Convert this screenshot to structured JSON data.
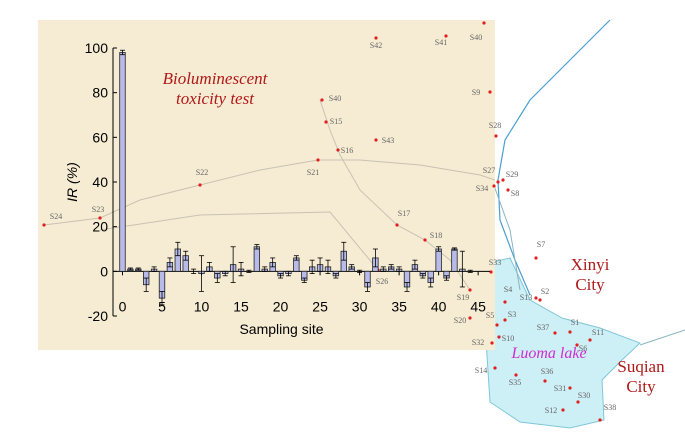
{
  "chart_data": {
    "type": "bar",
    "x_label": "Sampling site",
    "y_label": "IR (%)",
    "annotation": [
      "Bioluminescent",
      "toxicity test"
    ],
    "x": [
      0,
      1,
      2,
      3,
      4,
      5,
      6,
      7,
      8,
      9,
      10,
      11,
      12,
      13,
      14,
      15,
      16,
      17,
      18,
      19,
      20,
      21,
      22,
      23,
      24,
      25,
      26,
      27,
      28,
      29,
      30,
      31,
      32,
      33,
      34,
      35,
      36,
      37,
      38,
      39,
      40,
      41,
      42,
      43,
      44
    ],
    "values": [
      98,
      1,
      1,
      -6,
      1,
      -12,
      4,
      10,
      7,
      0,
      -1,
      2,
      -3,
      -1,
      3,
      1,
      0,
      11,
      1,
      4,
      -2,
      -1,
      6,
      -4,
      2,
      3,
      2,
      -2,
      9,
      2,
      0,
      -7,
      6,
      1,
      2,
      1,
      -7,
      3,
      -2,
      -5,
      10,
      -3,
      10,
      1,
      0
    ],
    "errors": [
      1,
      0.5,
      0.5,
      3,
      1,
      3,
      2,
      3,
      2,
      1,
      8,
      2,
      2,
      1,
      8,
      3,
      0.5,
      1,
      1,
      2,
      1,
      1,
      1,
      1,
      3,
      3,
      3,
      1,
      4,
      1,
      0.5,
      2,
      4,
      1,
      1,
      1,
      2,
      2,
      1,
      2,
      1,
      1,
      0.5,
      8,
      0.5
    ],
    "color": "#b8bbea",
    "xlim": [
      -1.2,
      46.5
    ],
    "ylim": [
      -20,
      100
    ],
    "xticks": [
      0,
      5,
      10,
      15,
      20,
      25,
      30,
      35,
      40,
      45
    ],
    "yticks": [
      -20,
      0,
      20,
      40,
      60,
      80,
      100
    ]
  },
  "map": {
    "sites": [
      "S42",
      "S41",
      "S40",
      "S9",
      "S28",
      "S29",
      "S27",
      "S34",
      "S8",
      "S7",
      "S33",
      "S4",
      "S2",
      "S13",
      "S3",
      "S5",
      "S20",
      "S37",
      "S1",
      "S11",
      "S32",
      "S10",
      "S6",
      "S14",
      "S35",
      "S36",
      "S31",
      "S30",
      "S12",
      "S38",
      "S22",
      "S21",
      "S16",
      "S15",
      "S40",
      "S43",
      "S17",
      "S18",
      "S26",
      "S19",
      "S23",
      "S24"
    ],
    "lake": "Luoma lake",
    "xinyi": [
      "Xinyi",
      "City"
    ],
    "suqian": [
      "Suqian",
      "City"
    ]
  }
}
